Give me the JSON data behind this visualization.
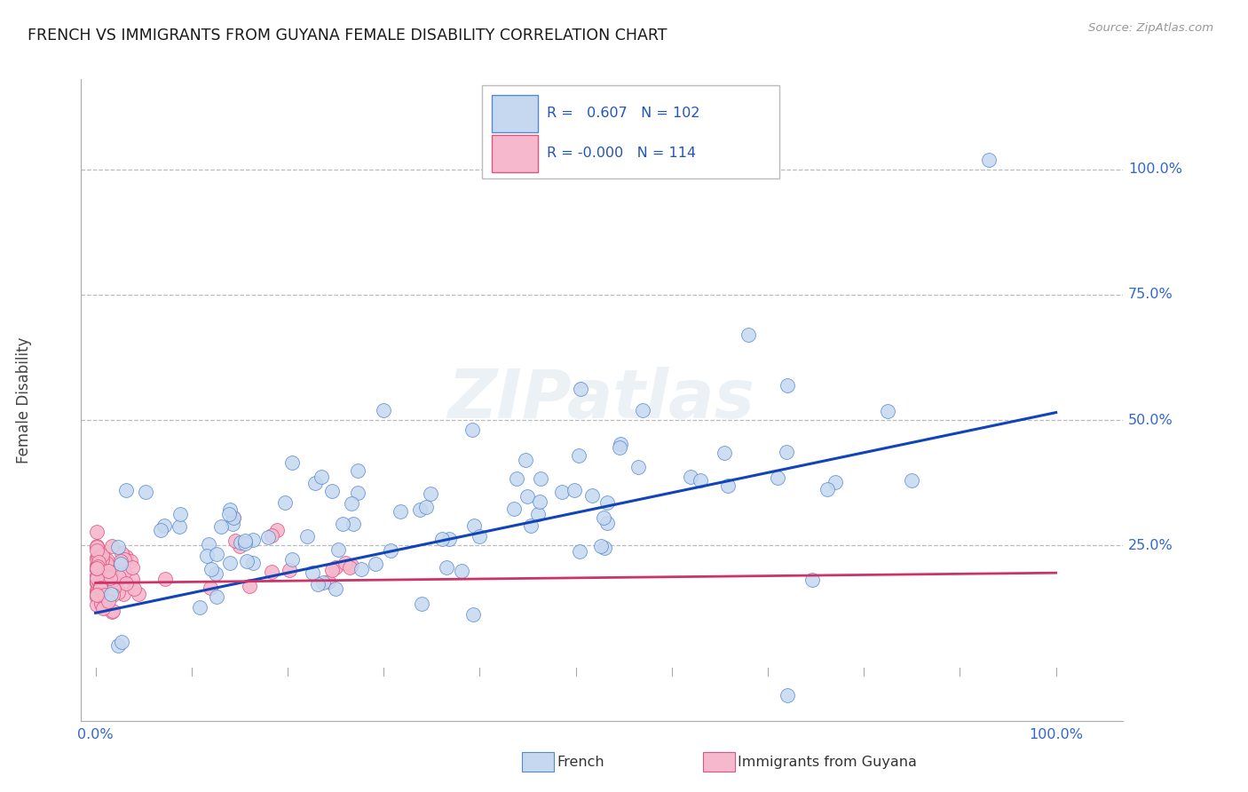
{
  "title": "FRENCH VS IMMIGRANTS FROM GUYANA FEMALE DISABILITY CORRELATION CHART",
  "source": "Source: ZipAtlas.com",
  "ylabel": "Female Disability",
  "legend_bottom": [
    "French",
    "Immigrants from Guyana"
  ],
  "french": {
    "R": 0.607,
    "N": 102,
    "color": "#c5d8f0",
    "edge_color": "#5588cc",
    "line_color": "#1144bb"
  },
  "guyana": {
    "R": -0.0,
    "N": 114,
    "color": "#f5b8cc",
    "edge_color": "#e05580",
    "line_color": "#cc3366"
  },
  "watermark": "ZIPatlas",
  "background_color": "#ffffff",
  "grid_color": "#bbbbbb",
  "y_tick_vals": [
    0.25,
    0.5,
    0.75,
    1.0
  ],
  "y_tick_labels": [
    "25.0%",
    "50.0%",
    "75.0%",
    "100.0%"
  ]
}
